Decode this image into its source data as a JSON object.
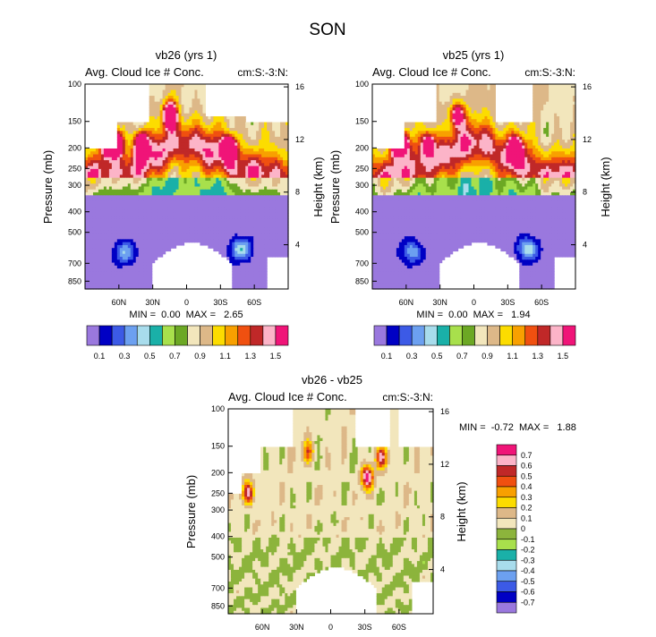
{
  "figure_title": "SON",
  "colors": {
    "abs_scale": [
      "#9a78de",
      "#0000c4",
      "#3c5ae6",
      "#6ca0f0",
      "#a8dcec",
      "#1ab0a8",
      "#a8e04c",
      "#6ca824",
      "#f2e6bc",
      "#ddb888",
      "#fcdc00",
      "#f8a000",
      "#f05010",
      "#c02828",
      "#fcb4c8",
      "#f01478"
    ],
    "diff_scale": [
      "#9a78de",
      "#0000c4",
      "#3c5ae6",
      "#6ca0f0",
      "#a8dcec",
      "#1ab0a8",
      "#a8e04c",
      "#8cb43c",
      "#f2e6bc",
      "#ddb888",
      "#fcdc00",
      "#f8a000",
      "#f05010",
      "#c02828",
      "#fcb4c8",
      "#f01478"
    ]
  },
  "chart_data": [
    {
      "type": "heatmap",
      "title": "vb26 (yrs 1)",
      "left_label": "Avg. Cloud Ice # Conc.",
      "right_label": "cm:S:-3:N:",
      "ylabel": "Pressure (mb)",
      "y2label": "Height (km)",
      "x_ticks": [
        "60N",
        "30N",
        "0",
        "30S",
        "60S"
      ],
      "x_tick_values": [
        60,
        30,
        0,
        -30,
        -60
      ],
      "xlim": [
        90,
        -90
      ],
      "y_ticks": [
        "100",
        "150",
        "200",
        "250",
        "300",
        "400",
        "500",
        "700",
        "850"
      ],
      "y_tick_values": [
        100,
        150,
        200,
        250,
        300,
        400,
        500,
        700,
        850
      ],
      "ylim": [
        100,
        925
      ],
      "y2_ticks": [
        "16",
        "12",
        "8",
        "4"
      ],
      "y2_tick_values": [
        16,
        12,
        8,
        4
      ],
      "stats": "MIN =  0.00  MAX =   2.65",
      "min": 0.0,
      "max": 2.65,
      "colorbar_labels": [
        "0.1",
        "0.3",
        "0.5",
        "0.7",
        "0.9",
        "1.1",
        "1.3",
        "1.5"
      ],
      "contour_levels": [
        0.1,
        0.2,
        0.3,
        0.4,
        0.5,
        0.6,
        0.7,
        0.8,
        0.9,
        1.0,
        1.1,
        1.2,
        1.3,
        1.4,
        1.5
      ]
    },
    {
      "type": "heatmap",
      "title": "vb25 (yrs 1)",
      "left_label": "Avg. Cloud Ice # Conc.",
      "right_label": "cm:S:-3:N:",
      "ylabel": "Pressure (mb)",
      "y2label": "Height (km)",
      "x_ticks": [
        "60N",
        "30N",
        "0",
        "30S",
        "60S"
      ],
      "x_tick_values": [
        60,
        30,
        0,
        -30,
        -60
      ],
      "xlim": [
        90,
        -90
      ],
      "y_ticks": [
        "100",
        "150",
        "200",
        "250",
        "300",
        "400",
        "500",
        "700",
        "850"
      ],
      "y_tick_values": [
        100,
        150,
        200,
        250,
        300,
        400,
        500,
        700,
        850
      ],
      "ylim": [
        100,
        925
      ],
      "y2_ticks": [
        "16",
        "12",
        "8",
        "4"
      ],
      "y2_tick_values": [
        16,
        12,
        8,
        4
      ],
      "stats": "MIN =  0.00  MAX =   1.94",
      "min": 0.0,
      "max": 1.94,
      "colorbar_labels": [
        "0.1",
        "0.3",
        "0.5",
        "0.7",
        "0.9",
        "1.1",
        "1.3",
        "1.5"
      ],
      "contour_levels": [
        0.1,
        0.2,
        0.3,
        0.4,
        0.5,
        0.6,
        0.7,
        0.8,
        0.9,
        1.0,
        1.1,
        1.2,
        1.3,
        1.4,
        1.5
      ]
    },
    {
      "type": "heatmap",
      "title": "vb26 - vb25",
      "left_label": "Avg. Cloud Ice # Conc.",
      "right_label": "cm:S:-3:N:",
      "ylabel": "Pressure (mb)",
      "y2label": "Height (km)",
      "x_ticks": [
        "60N",
        "30N",
        "0",
        "30S",
        "60S"
      ],
      "x_tick_values": [
        60,
        30,
        0,
        -30,
        -60
      ],
      "xlim": [
        90,
        -90
      ],
      "y_ticks": [
        "100",
        "150",
        "200",
        "250",
        "300",
        "400",
        "500",
        "700",
        "850"
      ],
      "y_tick_values": [
        100,
        150,
        200,
        250,
        300,
        400,
        500,
        700,
        850
      ],
      "ylim": [
        100,
        925
      ],
      "y2_ticks": [
        "16",
        "12",
        "8",
        "4"
      ],
      "y2_tick_values": [
        16,
        12,
        8,
        4
      ],
      "stats": "MIN =  -0.72  MAX =   1.88",
      "min": -0.72,
      "max": 1.88,
      "colorbar_labels": [
        "0.7",
        "0.6",
        "0.5",
        "0.4",
        "0.3",
        "0.2",
        "0.1",
        "0",
        "-0.1",
        "-0.2",
        "-0.3",
        "-0.4",
        "-0.5",
        "-0.6",
        "-0.7"
      ],
      "contour_levels": [
        -0.7,
        -0.6,
        -0.5,
        -0.4,
        -0.3,
        -0.2,
        -0.1,
        0,
        0.1,
        0.2,
        0.3,
        0.4,
        0.5,
        0.6,
        0.7
      ]
    }
  ]
}
